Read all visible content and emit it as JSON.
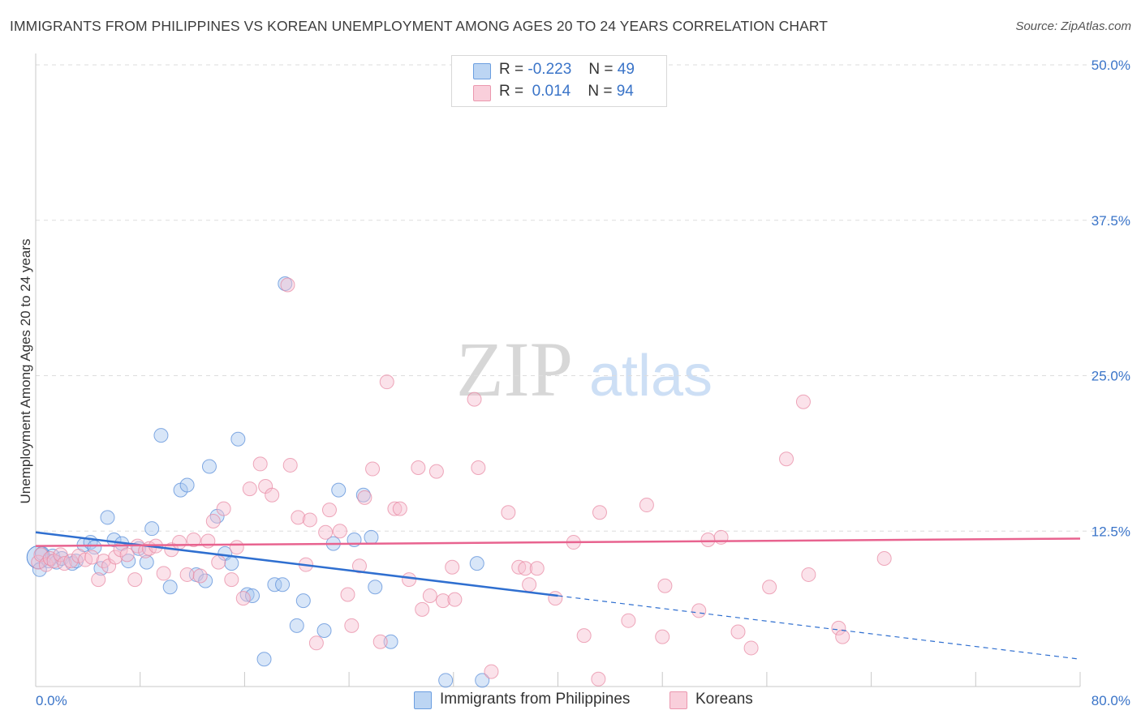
{
  "title": "IMMIGRANTS FROM PHILIPPINES VS KOREAN UNEMPLOYMENT AMONG AGES 20 TO 24 YEARS CORRELATION CHART",
  "source": "Source: ZipAtlas.com",
  "watermark": {
    "zip": "ZIP",
    "atlas": "atlas"
  },
  "legend": {
    "rows": [
      {
        "r_label": "R =",
        "r_value": "-0.223",
        "n_label": "N =",
        "n_value": "49"
      },
      {
        "r_label": "R =",
        "r_value": "0.014",
        "n_label": "N =",
        "n_value": "94"
      }
    ]
  },
  "bottom_legend": {
    "philippines": "Immigrants from Philippines",
    "koreans": "Koreans"
  },
  "colors": {
    "philippines_fill": "#a9c8f0",
    "philippines_stroke": "#5b8fd9",
    "philippines_line": "#2f6fd0",
    "koreans_fill": "#f7bfd0",
    "koreans_stroke": "#e7849f",
    "koreans_line": "#e8638f",
    "axis_text": "#3a74c8",
    "grid": "#dddddd"
  },
  "chart_data": {
    "type": "scatter",
    "title": "IMMIGRANTS FROM PHILIPPINES VS KOREAN UNEMPLOYMENT AMONG AGES 20 TO 24 YEARS CORRELATION CHART",
    "xlabel": "",
    "ylabel": "Unemployment Among Ages 20 to 24 years",
    "xlim": [
      0,
      80
    ],
    "ylim": [
      0,
      50
    ],
    "x_tick_labels": [
      "0.0%",
      "80.0%"
    ],
    "y_ticks": [
      12.5,
      25.0,
      37.5,
      50.0
    ],
    "y_tick_labels": [
      "12.5%",
      "25.0%",
      "37.5%",
      "50.0%"
    ],
    "grid": true,
    "legend_placement": "top-center",
    "series": [
      {
        "name": "Immigrants from Philippines",
        "stats": {
          "R": -0.223,
          "N": 49
        },
        "trend": {
          "x": [
            0,
            80
          ],
          "y": [
            12.4,
            2.2
          ],
          "solid_until_x": 40
        },
        "points": [
          [
            0.3,
            9.4
          ],
          [
            0.5,
            10.7
          ],
          [
            1.0,
            10.1
          ],
          [
            1.3,
            10.5
          ],
          [
            1.6,
            10.0
          ],
          [
            2.0,
            10.3
          ],
          [
            2.8,
            9.9
          ],
          [
            3.1,
            10.1
          ],
          [
            3.7,
            11.4
          ],
          [
            4.2,
            11.6
          ],
          [
            4.5,
            11.2
          ],
          [
            5.0,
            9.5
          ],
          [
            5.5,
            13.6
          ],
          [
            6.0,
            11.8
          ],
          [
            6.6,
            11.5
          ],
          [
            7.1,
            10.1
          ],
          [
            7.9,
            11.1
          ],
          [
            8.5,
            10.0
          ],
          [
            8.9,
            12.7
          ],
          [
            9.6,
            20.2
          ],
          [
            10.3,
            8.0
          ],
          [
            11.1,
            15.8
          ],
          [
            11.6,
            16.2
          ],
          [
            12.3,
            9.0
          ],
          [
            13.0,
            8.5
          ],
          [
            13.3,
            17.7
          ],
          [
            13.9,
            13.7
          ],
          [
            14.5,
            10.7
          ],
          [
            15.0,
            9.9
          ],
          [
            15.5,
            19.9
          ],
          [
            16.2,
            7.4
          ],
          [
            16.6,
            7.3
          ],
          [
            17.5,
            2.2
          ],
          [
            18.3,
            8.2
          ],
          [
            18.9,
            8.2
          ],
          [
            19.1,
            32.4
          ],
          [
            20.0,
            4.9
          ],
          [
            20.5,
            6.9
          ],
          [
            22.1,
            4.5
          ],
          [
            22.8,
            11.5
          ],
          [
            23.2,
            15.8
          ],
          [
            24.4,
            11.8
          ],
          [
            25.1,
            15.4
          ],
          [
            25.7,
            12.0
          ],
          [
            26.0,
            8.0
          ],
          [
            27.2,
            3.6
          ],
          [
            31.4,
            0.5
          ],
          [
            33.8,
            9.9
          ],
          [
            34.2,
            0.5
          ]
        ],
        "bubble": {
          "x": 0.2,
          "y": 10.4,
          "size": "large"
        }
      },
      {
        "name": "Koreans",
        "stats": {
          "R": 0.014,
          "N": 94
        },
        "trend": {
          "x": [
            0,
            80
          ],
          "y": [
            11.3,
            11.9
          ]
        },
        "points": [
          [
            0.2,
            10.0
          ],
          [
            0.4,
            10.6
          ],
          [
            0.8,
            9.8
          ],
          [
            1.1,
            10.3
          ],
          [
            1.4,
            10.1
          ],
          [
            1.9,
            10.6
          ],
          [
            2.2,
            9.9
          ],
          [
            2.7,
            10.1
          ],
          [
            3.3,
            10.5
          ],
          [
            3.8,
            10.2
          ],
          [
            4.3,
            10.4
          ],
          [
            4.8,
            8.6
          ],
          [
            5.2,
            10.1
          ],
          [
            5.6,
            9.7
          ],
          [
            6.1,
            10.4
          ],
          [
            6.5,
            11.0
          ],
          [
            7.0,
            10.6
          ],
          [
            7.6,
            8.6
          ],
          [
            7.8,
            11.3
          ],
          [
            8.4,
            10.9
          ],
          [
            8.7,
            11.1
          ],
          [
            9.2,
            11.3
          ],
          [
            9.8,
            9.1
          ],
          [
            10.4,
            11.0
          ],
          [
            11.0,
            11.6
          ],
          [
            11.6,
            9.0
          ],
          [
            12.1,
            11.8
          ],
          [
            12.6,
            8.9
          ],
          [
            13.2,
            11.7
          ],
          [
            13.6,
            13.3
          ],
          [
            14.0,
            10.0
          ],
          [
            14.4,
            14.3
          ],
          [
            15.0,
            8.6
          ],
          [
            15.4,
            11.2
          ],
          [
            15.9,
            7.1
          ],
          [
            16.4,
            15.9
          ],
          [
            17.2,
            17.9
          ],
          [
            17.6,
            16.1
          ],
          [
            18.1,
            15.4
          ],
          [
            19.3,
            32.3
          ],
          [
            19.5,
            17.8
          ],
          [
            20.1,
            13.6
          ],
          [
            20.7,
            9.8
          ],
          [
            21.0,
            13.4
          ],
          [
            21.5,
            3.5
          ],
          [
            22.2,
            12.4
          ],
          [
            22.5,
            14.2
          ],
          [
            23.3,
            12.5
          ],
          [
            23.9,
            7.4
          ],
          [
            24.2,
            4.9
          ],
          [
            24.8,
            9.7
          ],
          [
            25.2,
            15.2
          ],
          [
            25.8,
            17.5
          ],
          [
            26.4,
            3.6
          ],
          [
            26.9,
            24.5
          ],
          [
            27.5,
            14.3
          ],
          [
            27.9,
            14.3
          ],
          [
            28.6,
            8.6
          ],
          [
            29.3,
            17.6
          ],
          [
            29.6,
            6.2
          ],
          [
            30.2,
            7.3
          ],
          [
            30.7,
            17.3
          ],
          [
            31.2,
            6.9
          ],
          [
            31.9,
            9.6
          ],
          [
            32.1,
            7.0
          ],
          [
            33.6,
            23.1
          ],
          [
            33.9,
            17.6
          ],
          [
            34.9,
            1.2
          ],
          [
            36.2,
            14.0
          ],
          [
            37.0,
            9.6
          ],
          [
            37.5,
            9.5
          ],
          [
            37.8,
            8.2
          ],
          [
            38.4,
            9.5
          ],
          [
            39.8,
            7.1
          ],
          [
            41.2,
            11.6
          ],
          [
            42.0,
            4.1
          ],
          [
            43.1,
            0.6
          ],
          [
            43.2,
            14.0
          ],
          [
            45.4,
            5.3
          ],
          [
            46.8,
            14.6
          ],
          [
            47.6,
            47.2
          ],
          [
            48.0,
            4.0
          ],
          [
            48.2,
            8.1
          ],
          [
            50.8,
            6.1
          ],
          [
            51.5,
            11.8
          ],
          [
            52.5,
            12.0
          ],
          [
            53.8,
            4.4
          ],
          [
            54.8,
            3.1
          ],
          [
            56.2,
            8.0
          ],
          [
            57.5,
            18.3
          ],
          [
            58.8,
            22.9
          ],
          [
            59.2,
            9.0
          ],
          [
            61.5,
            4.7
          ],
          [
            61.8,
            4.0
          ],
          [
            65.0,
            10.3
          ]
        ]
      }
    ]
  }
}
